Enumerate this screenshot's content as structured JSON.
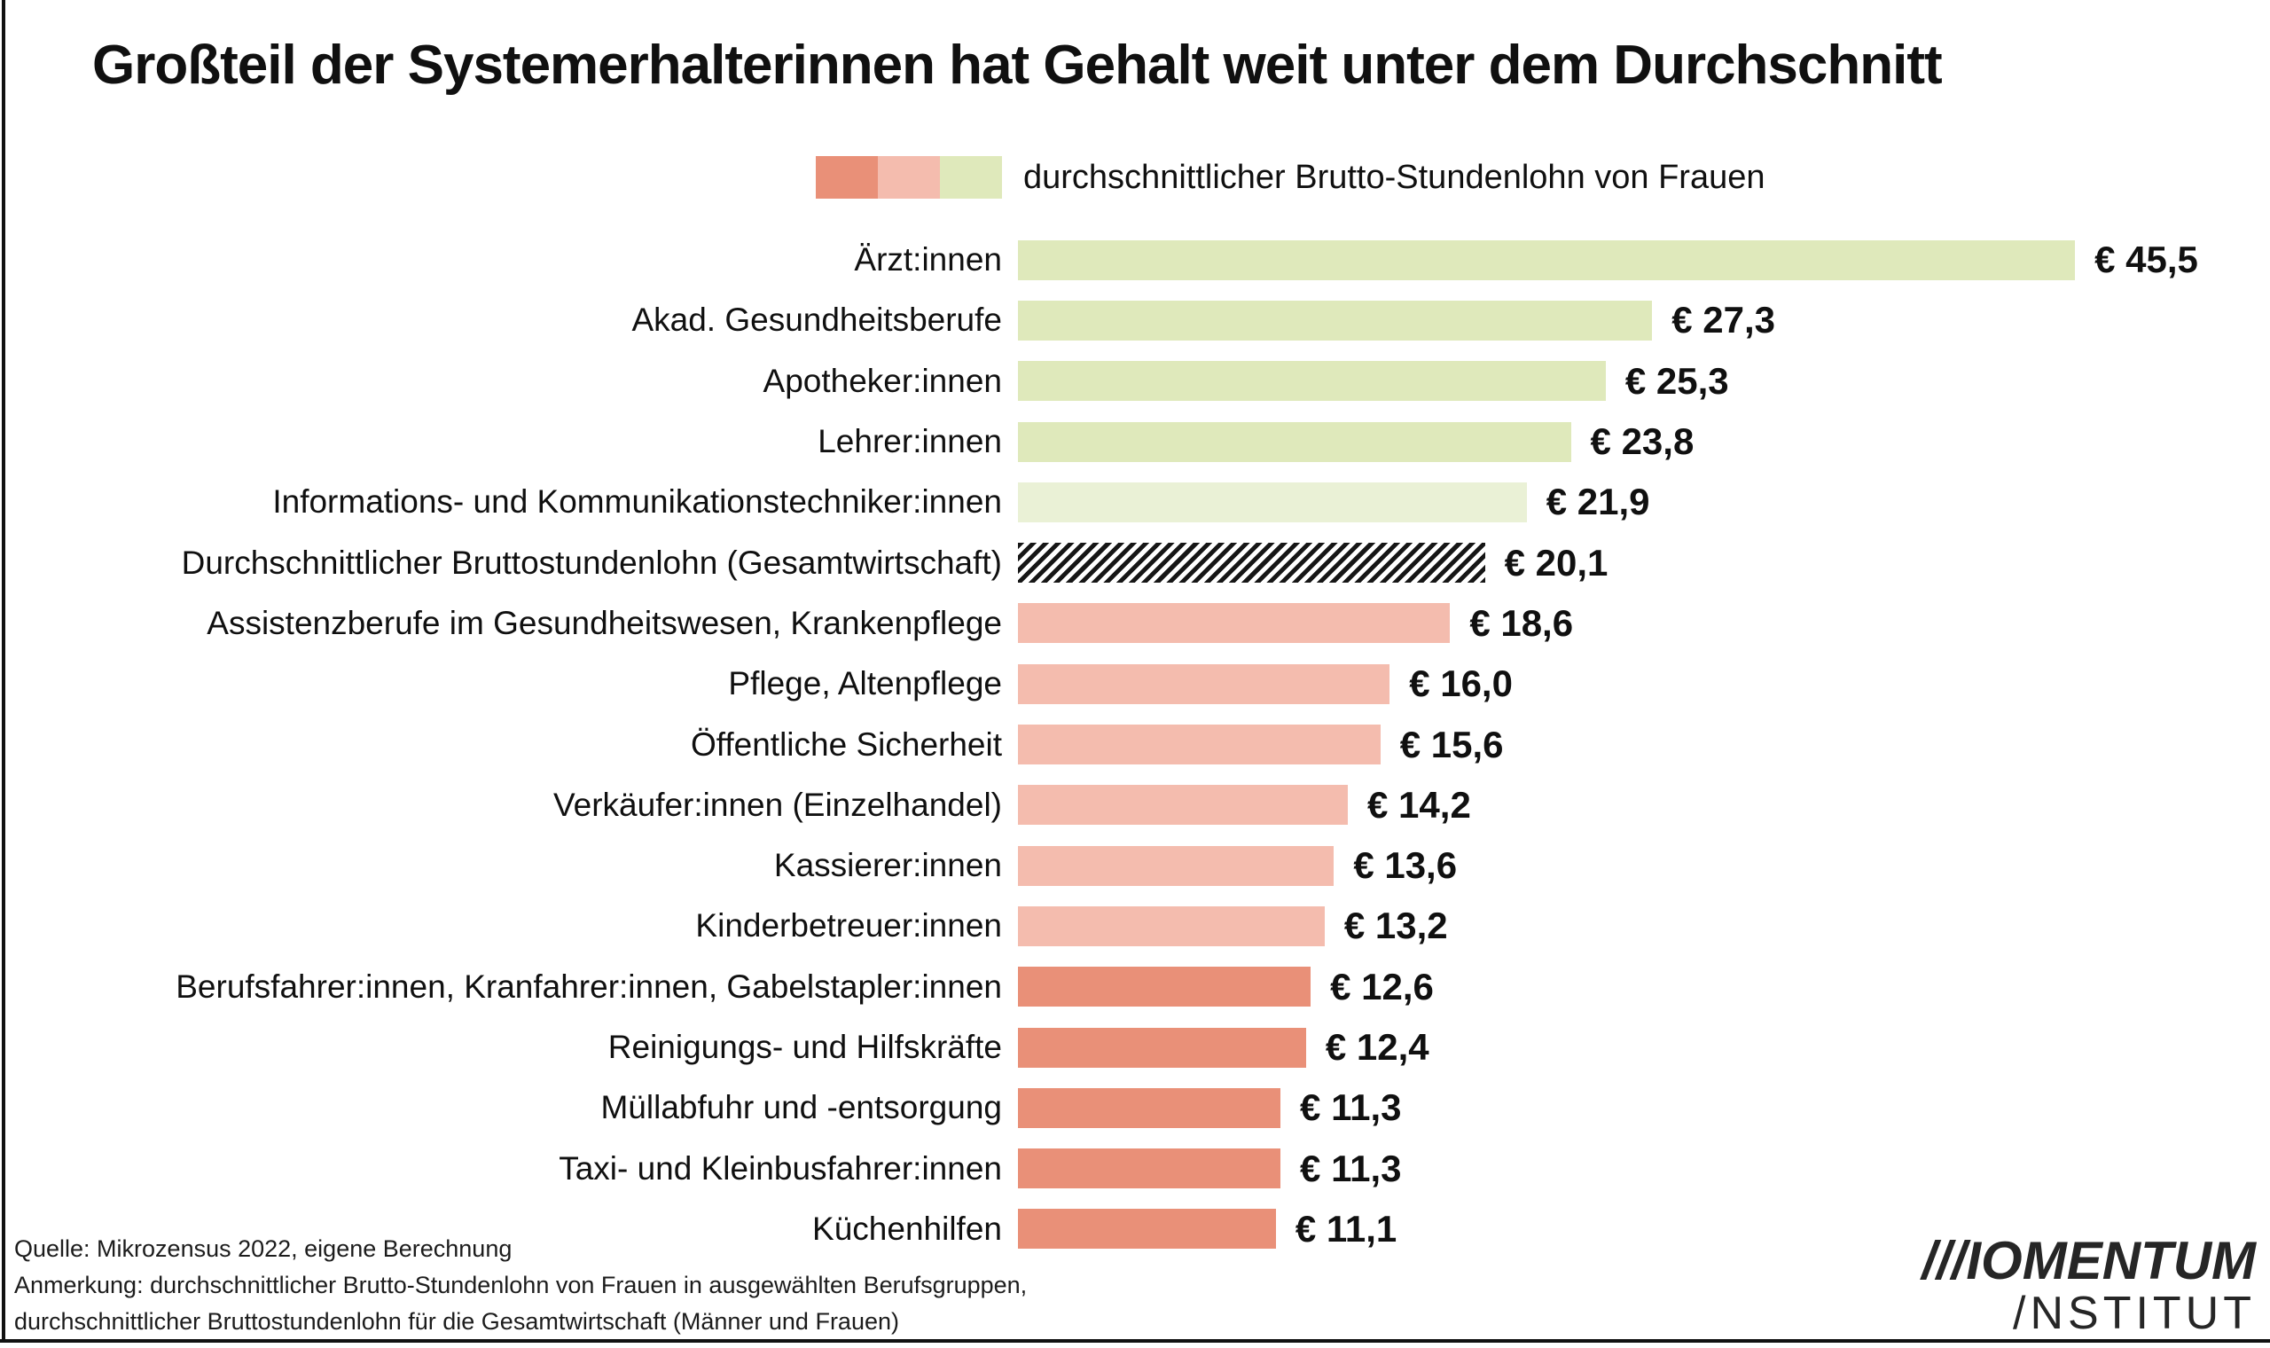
{
  "title": "Großteil der Systemerhalterinnen hat Gehalt weit unter dem Durchschnitt",
  "legend": {
    "label": "durchschnittlicher Brutto-Stundenlohn von Frauen",
    "swatches": [
      {
        "name": "salmon-swatch",
        "color": "#e99078"
      },
      {
        "name": "pink-swatch",
        "color": "#f4bcae"
      },
      {
        "name": "green-swatch",
        "color": "#dfe9bb"
      }
    ]
  },
  "chart_data": {
    "type": "bar",
    "orientation": "horizontal",
    "title": "Großteil der Systemerhalterinnen hat Gehalt weit unter dem Durchschnitt",
    "xlabel": "",
    "ylabel": "",
    "xlim": [
      0,
      47
    ],
    "grid": false,
    "legend_position": "top",
    "categories": [
      "Ärzt:innen",
      "Akad. Gesundheitsberufe",
      "Apotheker:innen",
      "Lehrer:innen",
      "Informations- und Kommunikationstechniker:innen",
      "Durchschnittlicher Bruttostundenlohn (Gesamtwirtschaft)",
      "Assistenzberufe im Gesundheitswesen, Krankenpflege",
      "Pflege, Altenpflege",
      "Öffentliche Sicherheit",
      "Verkäufer:innen (Einzelhandel)",
      "Kassierer:innen",
      "Kinderbetreuer:innen",
      "Berufsfahrer:innen, Kranfahrer:innen, Gabelstapler:innen",
      "Reinigungs- und Hilfskräfte",
      "Müllabfuhr und -entsorgung",
      "Taxi- und Kleinbusfahrer:innen",
      "Küchenhilfen"
    ],
    "values": [
      45.5,
      27.3,
      25.3,
      23.8,
      21.9,
      20.1,
      18.6,
      16.0,
      15.6,
      14.2,
      13.6,
      13.2,
      12.6,
      12.4,
      11.3,
      11.3,
      11.1
    ],
    "value_labels": [
      "€ 45,5",
      "€ 27,3",
      "€ 25,3",
      "€ 23,8",
      "€ 21,9",
      "€ 20,1",
      "€ 18,6",
      "€ 16,0",
      "€ 15,6",
      "€ 14,2",
      "€ 13,6",
      "€ 13,2",
      "€ 12,6",
      "€ 12,4",
      "€ 11,3",
      "€ 11,3",
      "€ 11,1"
    ],
    "bar_styles": [
      "green",
      "green",
      "green",
      "green",
      "green-light",
      "hatched",
      "pink",
      "pink",
      "pink",
      "pink",
      "pink",
      "pink",
      "salmon",
      "salmon",
      "salmon",
      "salmon",
      "salmon"
    ]
  },
  "colors": {
    "bar_green": "#dfe9bb",
    "bar_green_light": "#eaf1d6",
    "bar_pink": "#f4bcae",
    "bar_salmon": "#e99078",
    "hatch_foreground": "#161616",
    "hatch_background": "#ffffff",
    "text": "#111111"
  },
  "footer": {
    "source": "Quelle: Mikrozensus 2022, eigene Berechnung",
    "note_line_1": "Anmerkung: durchschnittlicher Brutto-Stundenlohn von Frauen in ausgewählten Berufsgruppen,",
    "note_line_2": "durchschnittlicher Bruttostundenlohn für die Gesamtwirtschaft (Männer und Frauen)"
  },
  "logo": {
    "line1": "///IOMENTUM",
    "line2": "/NSTITUT"
  }
}
